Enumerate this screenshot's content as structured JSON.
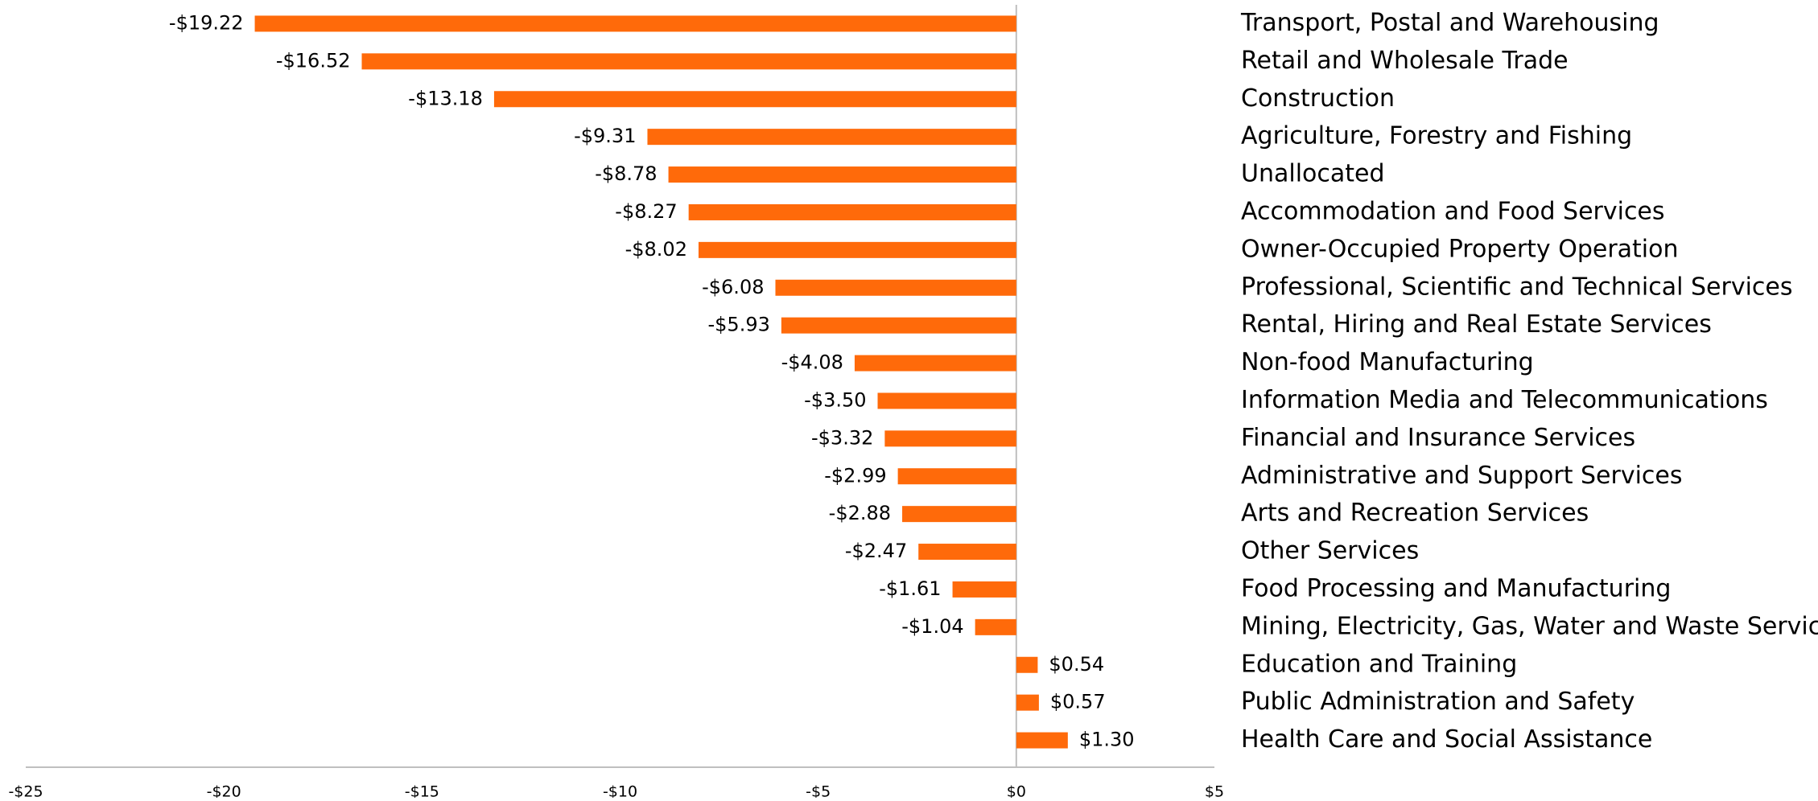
{
  "chart_data": {
    "type": "hbar",
    "categories": [
      "Transport, Postal and Warehousing",
      "Retail and Wholesale Trade",
      "Construction",
      "Agriculture, Forestry and Fishing",
      "Unallocated",
      "Accommodation and Food Services",
      "Owner-Occupied Property Operation",
      "Professional, Scientific and Technical Services",
      "Rental, Hiring and Real Estate Services",
      "Non-food Manufacturing",
      "Information Media and Telecommunications",
      "Financial and Insurance Services",
      "Administrative and Support Services",
      "Arts and Recreation Services",
      "Other Services",
      "Food Processing and Manufacturing",
      "Mining, Electricity, Gas, Water and Waste Services",
      "Education and Training",
      "Public Administration and Safety",
      "Health Care and Social Assistance"
    ],
    "values": [
      -19.22,
      -16.52,
      -13.18,
      -9.31,
      -8.78,
      -8.27,
      -8.02,
      -6.08,
      -5.93,
      -4.08,
      -3.5,
      -3.32,
      -2.99,
      -2.88,
      -2.47,
      -1.61,
      -1.04,
      0.54,
      0.57,
      1.3
    ],
    "value_labels": [
      "-$19.22",
      "-$16.52",
      "-$13.18",
      "-$9.31",
      "-$8.78",
      "-$8.27",
      "-$8.02",
      "-$6.08",
      "-$5.93",
      "-$4.08",
      "-$3.50",
      "-$3.32",
      "-$2.99",
      "-$2.88",
      "-$2.47",
      "-$1.61",
      "-$1.04",
      "$0.54",
      "$0.57",
      "$1.30"
    ],
    "color": "#ff6a0a",
    "xlim": [
      -25,
      5
    ],
    "xticks": [
      {
        "value": -25,
        "label": "-$25"
      },
      {
        "value": -20,
        "label": "-$20"
      },
      {
        "value": -15,
        "label": "-$15"
      },
      {
        "value": -10,
        "label": "-$10"
      },
      {
        "value": -5,
        "label": "-$5"
      },
      {
        "value": 0,
        "label": "$0"
      },
      {
        "value": 5,
        "label": "$5"
      }
    ]
  }
}
